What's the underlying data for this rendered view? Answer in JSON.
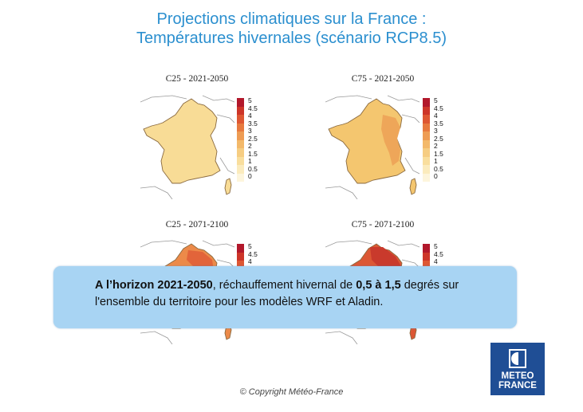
{
  "title": {
    "line1": "Projections climatiques sur la France :",
    "line2": "Températures hivernales (scénario RCP8.5)"
  },
  "legend": {
    "ticks": [
      "5",
      "4.5",
      "4",
      "3.5",
      "3",
      "2.5",
      "2",
      "1.5",
      "1",
      "0.5",
      "0"
    ],
    "colors": [
      "#b2182b",
      "#cd3529",
      "#de5733",
      "#e77a3f",
      "#ee9c54",
      "#f3b96a",
      "#f6cd82",
      "#f9de9d",
      "#fbebbd",
      "#fdf5dc"
    ]
  },
  "panels": [
    {
      "id": "c25-2021",
      "label": "C25 - 2021-2050",
      "fill": "#f8dc96",
      "inner": "",
      "ticks_visible": 11
    },
    {
      "id": "c75-2021",
      "label": "C75 - 2021-2050",
      "fill": "#f4c66f",
      "inner": "#eea659",
      "ticks_visible": 11
    },
    {
      "id": "c25-2071",
      "label": "C25 - 2071-2100",
      "fill": "#ec8a49",
      "inner": "#e2643a",
      "ticks_visible": 11
    },
    {
      "id": "c75-2071",
      "label": "C75 - 2071-2100",
      "fill": "#dc5734",
      "inner": "#c93a2c",
      "ticks_visible": 11
    }
  ],
  "overlay": {
    "bold_start": "A l’horizon 2021-2050",
    "mid": ", réchauffement hivernal de ",
    "bold_range": "0,5 à 1,5",
    "end": " degrés sur l'ensemble du territoire pour les modèles WRF et Aladin."
  },
  "logo": {
    "line1": "METEO",
    "line2": "FRANCE"
  },
  "copyright": "© Copyright Météo-France"
}
